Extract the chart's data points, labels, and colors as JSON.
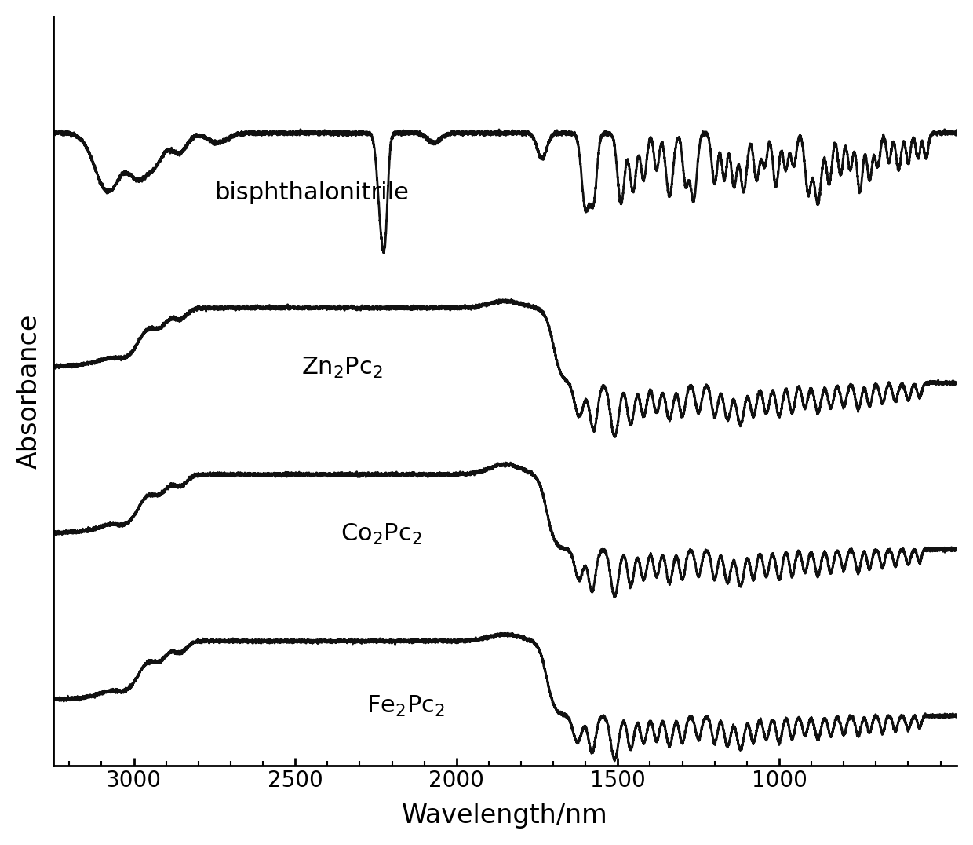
{
  "title": "",
  "xlabel": "Wavelength/nm",
  "ylabel": "Absorbance",
  "xlim": [
    3250,
    450
  ],
  "x_ticks": [
    3000,
    2500,
    2000,
    1500,
    1000
  ],
  "x_tick_labels": [
    "3000",
    "2500",
    "2000",
    "1500",
    "1000"
  ],
  "offsets": [
    3.0,
    2.0,
    1.0,
    0.0
  ],
  "line_color": "#111111",
  "line_width": 2.0,
  "background_color": "#ffffff",
  "font_size_labels": 24,
  "font_size_ticks": 20
}
